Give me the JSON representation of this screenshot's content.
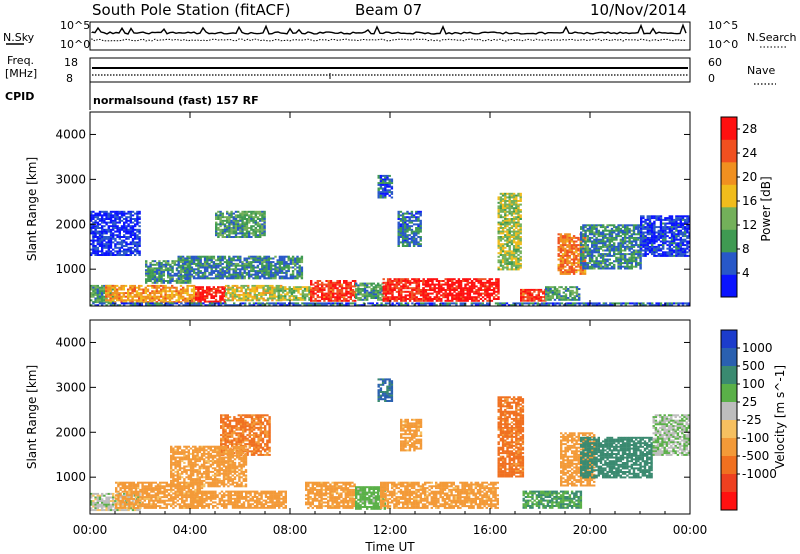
{
  "header": {
    "station": "South Pole Station (fitACF)",
    "beam": "Beam 07",
    "date": "10/Nov/2014"
  },
  "status_panels": {
    "nsky_label": "N.Sky",
    "nsearch_label": "N.Search",
    "noise_ticks": [
      "10^5",
      "10^0"
    ],
    "freq_label": "Freq.",
    "freq_unit": "[MHz]",
    "freq_ticks": [
      "18",
      "8"
    ],
    "nave_label": "Nave",
    "nave_ticks": [
      "60",
      "0"
    ],
    "cpid_label": "CPID",
    "cpid_value": "normalsound (fast) 157 RF"
  },
  "colors": {
    "power_scale": [
      "#0a14ff",
      "#2858c8",
      "#3f9a52",
      "#73b05a",
      "#f0bc1c",
      "#f09020",
      "#f05020",
      "#ff1010"
    ],
    "velocity_scale": [
      "#1c3ccc",
      "#2a60b0",
      "#3a8a70",
      "#5ab048",
      "#bdbdbd",
      "#f6c060",
      "#f39a38",
      "#f07020",
      "#ee4020",
      "#ff1010"
    ]
  },
  "chart_data": [
    {
      "type": "heatmap",
      "title": "Power",
      "xlabel": "Time UT",
      "ylabel": "Slant Range [km]",
      "x_ticks": [
        "00:00",
        "04:00",
        "08:00",
        "12:00",
        "16:00",
        "20:00",
        "00:00"
      ],
      "xlim": [
        0,
        24
      ],
      "ylim": [
        180,
        4500
      ],
      "y_ticks": [
        "1000",
        "2000",
        "3000",
        "4000"
      ],
      "colorbar_label": "Power [dB]",
      "colorbar_ticks": [
        "4",
        "8",
        "12",
        "16",
        "20",
        "24",
        "28"
      ],
      "colorbar_range": [
        0,
        30
      ],
      "regions": [
        {
          "t0": 0.0,
          "t1": 0.9,
          "r0": 250,
          "r1": 650,
          "value": 10
        },
        {
          "t0": 0.6,
          "t1": 4.2,
          "r0": 250,
          "r1": 650,
          "value": 20
        },
        {
          "t0": 2.2,
          "t1": 4.0,
          "r0": 700,
          "r1": 1200,
          "value": 9
        },
        {
          "t0": 4.2,
          "t1": 5.4,
          "r0": 280,
          "r1": 620,
          "value": 28
        },
        {
          "t0": 5.4,
          "t1": 7.6,
          "r0": 320,
          "r1": 650,
          "value": 16
        },
        {
          "t0": 5.0,
          "t1": 7.0,
          "r0": 1700,
          "r1": 2300,
          "value": 10
        },
        {
          "t0": 3.5,
          "t1": 8.5,
          "r0": 800,
          "r1": 1300,
          "value": 8
        },
        {
          "t0": 7.5,
          "t1": 8.8,
          "r0": 300,
          "r1": 620,
          "value": 14
        },
        {
          "t0": 8.8,
          "t1": 10.6,
          "r0": 280,
          "r1": 760,
          "value": 26
        },
        {
          "t0": 10.6,
          "t1": 11.7,
          "r0": 300,
          "r1": 700,
          "value": 10
        },
        {
          "t0": 11.7,
          "t1": 13.3,
          "r0": 300,
          "r1": 800,
          "value": 27
        },
        {
          "t0": 13.3,
          "t1": 16.3,
          "r0": 280,
          "r1": 800,
          "value": 29
        },
        {
          "t0": 11.5,
          "t1": 12.1,
          "r0": 2600,
          "r1": 3100,
          "value": 6
        },
        {
          "t0": 12.3,
          "t1": 13.2,
          "r0": 1500,
          "r1": 2300,
          "value": 7
        },
        {
          "t0": 16.3,
          "t1": 17.2,
          "r0": 1000,
          "r1": 2700,
          "value": 14
        },
        {
          "t0": 17.2,
          "t1": 18.2,
          "r0": 280,
          "r1": 560,
          "value": 26
        },
        {
          "t0": 18.2,
          "t1": 19.6,
          "r0": 300,
          "r1": 620,
          "value": 10
        },
        {
          "t0": 18.7,
          "t1": 19.8,
          "r0": 900,
          "r1": 1800,
          "value": 22
        },
        {
          "t0": 19.6,
          "t1": 22.0,
          "r0": 1000,
          "r1": 2000,
          "value": 8
        },
        {
          "t0": 22.0,
          "t1": 24.0,
          "r0": 1300,
          "r1": 2200,
          "value": 4
        },
        {
          "t0": 0.0,
          "t1": 2.0,
          "r0": 1300,
          "r1": 2300,
          "value": 3
        },
        {
          "t0": 0.0,
          "t1": 24.0,
          "r0": 200,
          "r1": 260,
          "value": 6
        }
      ]
    },
    {
      "type": "heatmap",
      "title": "Velocity",
      "xlabel": "Time UT",
      "ylabel": "Slant Range [km]",
      "x_ticks": [
        "00:00",
        "04:00",
        "08:00",
        "12:00",
        "16:00",
        "20:00",
        "00:00"
      ],
      "xlim": [
        0,
        24
      ],
      "ylim": [
        180,
        4500
      ],
      "y_ticks": [
        "1000",
        "2000",
        "3000",
        "4000"
      ],
      "colorbar_label": "Velocity [m s^-1]",
      "colorbar_ticks": [
        "1000",
        "500",
        "100",
        "25",
        "-25",
        "-100",
        "-500",
        "-1000"
      ],
      "regions": [
        {
          "t0": 0.0,
          "t1": 2.0,
          "r0": 250,
          "r1": 650,
          "value": 0
        },
        {
          "t0": 1.0,
          "t1": 4.5,
          "r0": 300,
          "r1": 900,
          "value": -150
        },
        {
          "t0": 4.0,
          "t1": 7.8,
          "r0": 300,
          "r1": 700,
          "value": -180
        },
        {
          "t0": 5.2,
          "t1": 7.2,
          "r0": 1500,
          "r1": 2400,
          "value": -600
        },
        {
          "t0": 3.2,
          "t1": 6.2,
          "r0": 800,
          "r1": 1700,
          "value": -150
        },
        {
          "t0": 8.6,
          "t1": 10.6,
          "r0": 300,
          "r1": 900,
          "value": -150
        },
        {
          "t0": 10.6,
          "t1": 11.8,
          "r0": 300,
          "r1": 800,
          "value": 60
        },
        {
          "t0": 11.6,
          "t1": 16.3,
          "r0": 300,
          "r1": 900,
          "value": -160
        },
        {
          "t0": 11.5,
          "t1": 12.1,
          "r0": 2700,
          "r1": 3200,
          "value": 600
        },
        {
          "t0": 12.4,
          "t1": 13.2,
          "r0": 1600,
          "r1": 2300,
          "value": -150
        },
        {
          "t0": 16.3,
          "t1": 17.3,
          "r0": 1000,
          "r1": 2800,
          "value": -700
        },
        {
          "t0": 17.3,
          "t1": 19.6,
          "r0": 300,
          "r1": 700,
          "value": 100
        },
        {
          "t0": 18.8,
          "t1": 20.2,
          "r0": 800,
          "r1": 2000,
          "value": -300
        },
        {
          "t0": 19.6,
          "t1": 22.5,
          "r0": 1000,
          "r1": 1900,
          "value": 300
        },
        {
          "t0": 22.5,
          "t1": 24.0,
          "r0": 1500,
          "r1": 2400,
          "value": 20
        }
      ]
    }
  ]
}
